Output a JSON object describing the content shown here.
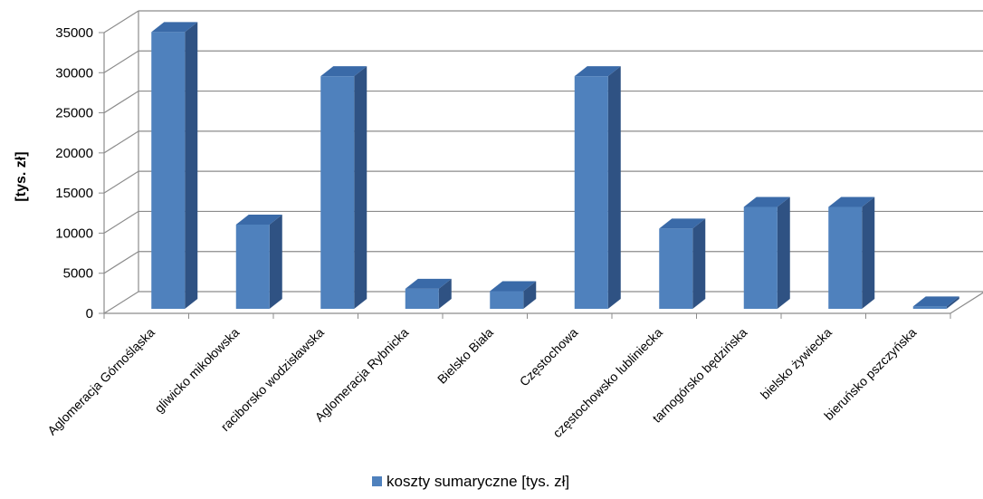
{
  "chart_data": {
    "type": "bar",
    "style": "3d-column",
    "title": "",
    "xlabel": "",
    "ylabel": "[tys. zł]",
    "ylim": [
      0,
      35000
    ],
    "yticks": [
      0,
      5000,
      10000,
      15000,
      20000,
      25000,
      30000,
      35000
    ],
    "grid": true,
    "legend_position": "bottom",
    "categories": [
      "Aglomeracja Górnośląska",
      "gliwicko mikołowska",
      "raciborsko wodzisławska",
      "Aglomeracja Rybnicka",
      "Bielsko Biała",
      "Częstochowa",
      "częstochowsko lubliniecka",
      "tarnogórsko będzińska",
      "bielsko żywiecka",
      "bieruńsko pszczyńska"
    ],
    "series": [
      {
        "name": "koszty sumaryczne [tys.  zł]",
        "color": "#4f81bd",
        "values": [
          34500,
          10500,
          29000,
          2500,
          2200,
          29000,
          10000,
          12700,
          12700,
          300
        ]
      }
    ]
  }
}
